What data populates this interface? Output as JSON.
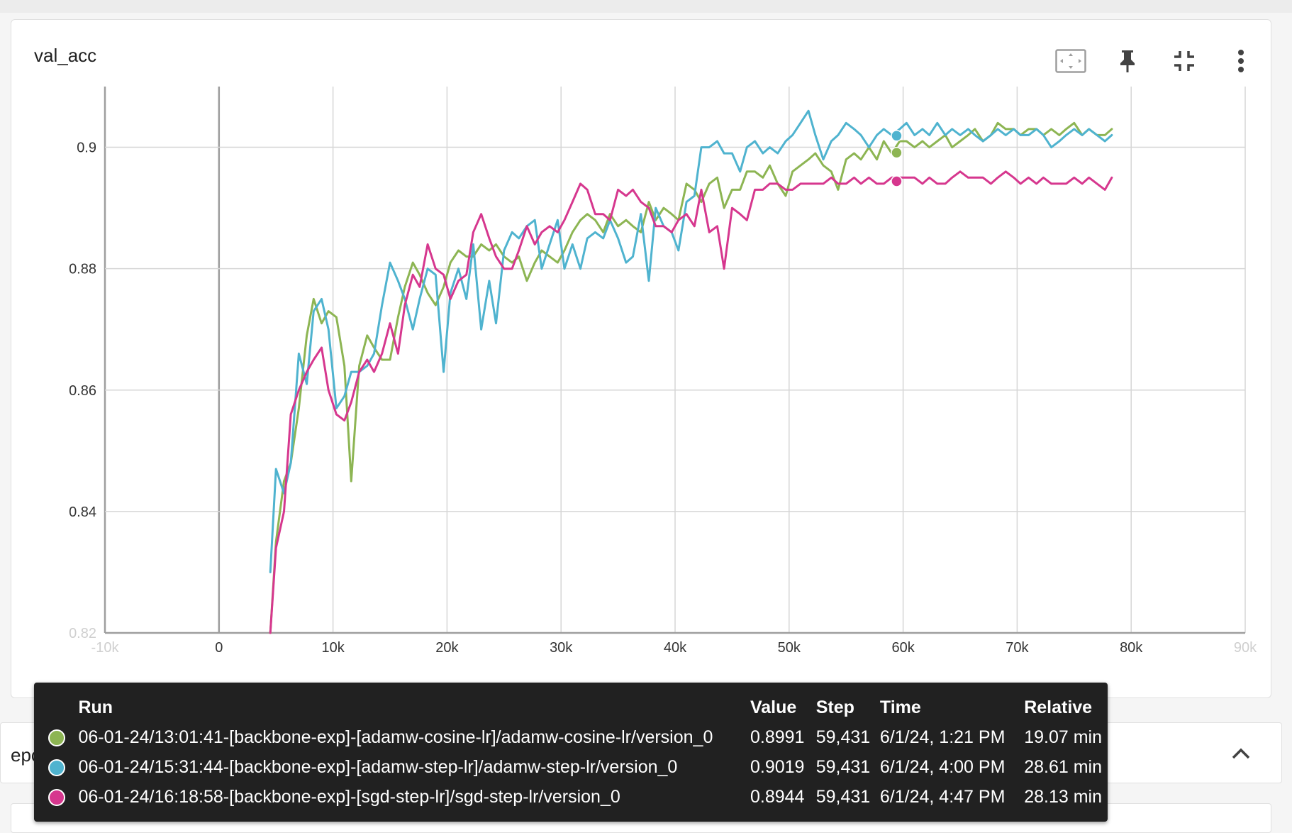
{
  "card": {
    "title": "val_acc"
  },
  "toolbar": {
    "icons": [
      "fit-domain-icon",
      "pin-icon",
      "collapse-icon",
      "more-vert-icon"
    ]
  },
  "colors": {
    "green": "#8db553",
    "blue": "#4fb3cf",
    "pink": "#d6378e",
    "grid": "#d6d6d6",
    "axis": "#9e9e9e"
  },
  "chart_data": {
    "type": "line",
    "title": "val_acc",
    "xlim": [
      -10000,
      90000
    ],
    "ylim": [
      0.82,
      0.91
    ],
    "x_ticks": [
      -10000,
      0,
      10000,
      20000,
      30000,
      40000,
      50000,
      60000,
      70000,
      80000,
      90000
    ],
    "x_tick_labels": [
      "-10k",
      "0",
      "10k",
      "20k",
      "30k",
      "40k",
      "50k",
      "60k",
      "70k",
      "80k",
      "90k"
    ],
    "y_ticks": [
      0.82,
      0.84,
      0.86,
      0.88,
      0.9
    ],
    "y_tick_labels": [
      "0.82",
      "0.84",
      "0.86",
      "0.88",
      "0.9"
    ],
    "grid": true,
    "hover_step": 59431,
    "series": [
      {
        "name": "06-01-24/13:01:41-[backbone-exp]-[adamw-cosine-lr]/adamw-cosine-lr/version_0",
        "color": "#8db553",
        "x": [
          4500,
          5000,
          5700,
          6300,
          7000,
          7700,
          8300,
          9000,
          9600,
          10300,
          11000,
          11600,
          12300,
          13000,
          13600,
          14300,
          15000,
          15700,
          16300,
          17000,
          17600,
          18300,
          19000,
          19700,
          20300,
          21000,
          21700,
          22300,
          23000,
          23700,
          24300,
          25000,
          25700,
          26300,
          27000,
          27700,
          28300,
          29000,
          29700,
          30300,
          31000,
          31700,
          32300,
          33000,
          33700,
          34300,
          35000,
          35700,
          36300,
          37000,
          37700,
          38300,
          39000,
          39700,
          40300,
          41000,
          41700,
          42300,
          43000,
          43700,
          44300,
          45000,
          45700,
          46300,
          47000,
          47700,
          48300,
          49000,
          49700,
          50300,
          51000,
          51700,
          52300,
          53000,
          53700,
          54300,
          55000,
          55700,
          56300,
          57000,
          57700,
          58300,
          59000,
          59700,
          60300,
          61000,
          61700,
          62300,
          63000,
          63700,
          64300,
          65000,
          65700,
          66300,
          67000,
          67700,
          68300,
          69000,
          69700,
          70300,
          71000,
          71700,
          72300,
          73000,
          73700,
          74300,
          75000,
          75700,
          76300,
          77000,
          77700,
          78300
        ],
        "values": [
          0.82,
          0.835,
          0.845,
          0.848,
          0.857,
          0.869,
          0.875,
          0.871,
          0.873,
          0.872,
          0.864,
          0.845,
          0.864,
          0.869,
          0.867,
          0.865,
          0.865,
          0.872,
          0.877,
          0.881,
          0.879,
          0.876,
          0.874,
          0.877,
          0.881,
          0.883,
          0.882,
          0.882,
          0.884,
          0.883,
          0.884,
          0.882,
          0.881,
          0.882,
          0.878,
          0.881,
          0.883,
          0.882,
          0.881,
          0.883,
          0.886,
          0.888,
          0.889,
          0.888,
          0.886,
          0.889,
          0.887,
          0.888,
          0.887,
          0.886,
          0.891,
          0.888,
          0.89,
          0.889,
          0.888,
          0.894,
          0.893,
          0.891,
          0.894,
          0.895,
          0.89,
          0.893,
          0.893,
          0.896,
          0.896,
          0.895,
          0.897,
          0.894,
          0.892,
          0.896,
          0.897,
          0.898,
          0.899,
          0.897,
          0.896,
          0.893,
          0.898,
          0.899,
          0.898,
          0.9,
          0.898,
          0.901,
          0.899,
          0.901,
          0.901,
          0.9,
          0.901,
          0.9,
          0.901,
          0.902,
          0.9,
          0.901,
          0.902,
          0.903,
          0.901,
          0.902,
          0.904,
          0.903,
          0.903,
          0.902,
          0.903,
          0.903,
          0.902,
          0.903,
          0.902,
          0.903,
          0.904,
          0.902,
          0.903,
          0.902,
          0.902,
          0.903
        ]
      },
      {
        "name": "06-01-24/15:31:44-[backbone-exp]-[adamw-step-lr]/adamw-step-lr/version_0",
        "color": "#4fb3cf",
        "x": [
          4500,
          5000,
          5700,
          6300,
          7000,
          7700,
          8300,
          9000,
          9600,
          10300,
          11000,
          11600,
          12300,
          13000,
          13600,
          14300,
          15000,
          15700,
          16300,
          17000,
          17600,
          18300,
          19000,
          19700,
          20300,
          21000,
          21700,
          22300,
          23000,
          23700,
          24300,
          25000,
          25700,
          26300,
          27000,
          27700,
          28300,
          29000,
          29700,
          30300,
          31000,
          31700,
          32300,
          33000,
          33700,
          34300,
          35000,
          35700,
          36300,
          37000,
          37700,
          38300,
          39000,
          39700,
          40300,
          41000,
          41700,
          42300,
          43000,
          43700,
          44300,
          45000,
          45700,
          46300,
          47000,
          47700,
          48300,
          49000,
          49700,
          50300,
          51000,
          51700,
          52300,
          53000,
          53700,
          54300,
          55000,
          55700,
          56300,
          57000,
          57700,
          58300,
          59000,
          59700,
          60300,
          61000,
          61700,
          62300,
          63000,
          63700,
          64300,
          65000,
          65700,
          66300,
          67000,
          67700,
          68300,
          69000,
          69700,
          70300,
          71000,
          71700,
          72300,
          73000,
          73700,
          74300,
          75000,
          75700,
          76300,
          77000,
          77700,
          78300
        ],
        "values": [
          0.83,
          0.847,
          0.843,
          0.848,
          0.866,
          0.861,
          0.873,
          0.875,
          0.87,
          0.857,
          0.859,
          0.863,
          0.863,
          0.864,
          0.866,
          0.874,
          0.881,
          0.878,
          0.875,
          0.87,
          0.875,
          0.88,
          0.879,
          0.863,
          0.876,
          0.88,
          0.875,
          0.884,
          0.87,
          0.878,
          0.871,
          0.883,
          0.886,
          0.885,
          0.887,
          0.888,
          0.88,
          0.884,
          0.888,
          0.88,
          0.884,
          0.88,
          0.885,
          0.886,
          0.885,
          0.888,
          0.885,
          0.881,
          0.882,
          0.889,
          0.878,
          0.89,
          0.887,
          0.886,
          0.883,
          0.891,
          0.892,
          0.9,
          0.9,
          0.901,
          0.899,
          0.899,
          0.896,
          0.9,
          0.901,
          0.899,
          0.9,
          0.899,
          0.901,
          0.902,
          0.904,
          0.906,
          0.902,
          0.898,
          0.901,
          0.902,
          0.904,
          0.903,
          0.902,
          0.9,
          0.902,
          0.903,
          0.902,
          0.903,
          0.904,
          0.902,
          0.903,
          0.902,
          0.904,
          0.902,
          0.903,
          0.902,
          0.903,
          0.902,
          0.901,
          0.902,
          0.903,
          0.902,
          0.903,
          0.902,
          0.902,
          0.903,
          0.902,
          0.9,
          0.901,
          0.902,
          0.903,
          0.902,
          0.903,
          0.902,
          0.901,
          0.902
        ]
      },
      {
        "name": "06-01-24/16:18:58-[backbone-exp]-[sgd-step-lr]/sgd-step-lr/version_0",
        "color": "#d6378e",
        "x": [
          4500,
          5000,
          5700,
          6300,
          7000,
          7700,
          8300,
          9000,
          9600,
          10300,
          11000,
          11600,
          12300,
          13000,
          13600,
          14300,
          15000,
          15700,
          16300,
          17000,
          17600,
          18300,
          19000,
          19700,
          20300,
          21000,
          21700,
          22300,
          23000,
          23700,
          24300,
          25000,
          25700,
          26300,
          27000,
          27700,
          28300,
          29000,
          29700,
          30300,
          31000,
          31700,
          32300,
          33000,
          33700,
          34300,
          35000,
          35700,
          36300,
          37000,
          37700,
          38300,
          39000,
          39700,
          40300,
          41000,
          41700,
          42300,
          43000,
          43700,
          44300,
          45000,
          45700,
          46300,
          47000,
          47700,
          48300,
          49000,
          49700,
          50300,
          51000,
          51700,
          52300,
          53000,
          53700,
          54300,
          55000,
          55700,
          56300,
          57000,
          57700,
          58300,
          59000,
          59700,
          60300,
          61000,
          61700,
          62300,
          63000,
          63700,
          64300,
          65000,
          65700,
          66300,
          67000,
          67700,
          68300,
          69000,
          69700,
          70300,
          71000,
          71700,
          72300,
          73000,
          73700,
          74300,
          75000,
          75700,
          76300,
          77000,
          77700,
          78300
        ],
        "values": [
          0.82,
          0.834,
          0.84,
          0.856,
          0.86,
          0.863,
          0.865,
          0.867,
          0.86,
          0.856,
          0.855,
          0.858,
          0.863,
          0.865,
          0.863,
          0.866,
          0.871,
          0.866,
          0.874,
          0.879,
          0.877,
          0.884,
          0.88,
          0.879,
          0.875,
          0.878,
          0.879,
          0.886,
          0.889,
          0.885,
          0.882,
          0.88,
          0.88,
          0.883,
          0.887,
          0.884,
          0.886,
          0.887,
          0.886,
          0.888,
          0.891,
          0.894,
          0.893,
          0.889,
          0.889,
          0.888,
          0.893,
          0.892,
          0.893,
          0.891,
          0.89,
          0.887,
          0.887,
          0.886,
          0.888,
          0.889,
          0.887,
          0.893,
          0.886,
          0.887,
          0.88,
          0.89,
          0.889,
          0.888,
          0.893,
          0.893,
          0.894,
          0.894,
          0.893,
          0.893,
          0.894,
          0.894,
          0.894,
          0.894,
          0.895,
          0.894,
          0.894,
          0.895,
          0.894,
          0.895,
          0.894,
          0.894,
          0.895,
          0.895,
          0.895,
          0.895,
          0.894,
          0.895,
          0.894,
          0.894,
          0.895,
          0.896,
          0.895,
          0.895,
          0.895,
          0.894,
          0.895,
          0.896,
          0.895,
          0.894,
          0.895,
          0.894,
          0.895,
          0.894,
          0.894,
          0.894,
          0.895,
          0.894,
          0.895,
          0.894,
          0.893,
          0.895
        ]
      }
    ],
    "hover_points": [
      {
        "series": 0,
        "x": 59431,
        "y": 0.8991
      },
      {
        "series": 1,
        "x": 59431,
        "y": 0.9019
      },
      {
        "series": 2,
        "x": 59431,
        "y": 0.8944
      }
    ]
  },
  "tooltip": {
    "headers": {
      "run": "Run",
      "value": "Value",
      "step": "Step",
      "time": "Time",
      "relative": "Relative"
    },
    "rows": [
      {
        "run": "06-01-24/13:01:41-[backbone-exp]-[adamw-cosine-lr]/adamw-cosine-lr/version_0",
        "value": "0.8991",
        "step": "59,431",
        "time": "6/1/24, 1:21 PM",
        "relative": "19.07 min",
        "color": "#8db553"
      },
      {
        "run": "06-01-24/15:31:44-[backbone-exp]-[adamw-step-lr]/adamw-step-lr/version_0",
        "value": "0.9019",
        "step": "59,431",
        "time": "6/1/24, 4:00 PM",
        "relative": "28.61 min",
        "color": "#4fb3cf"
      },
      {
        "run": "06-01-24/16:18:58-[backbone-exp]-[sgd-step-lr]/sgd-step-lr/version_0",
        "value": "0.8944",
        "step": "59,431",
        "time": "6/1/24, 4:47 PM",
        "relative": "28.13 min",
        "color": "#d6378e"
      }
    ]
  },
  "epoch_card": {
    "title": "epoch"
  }
}
